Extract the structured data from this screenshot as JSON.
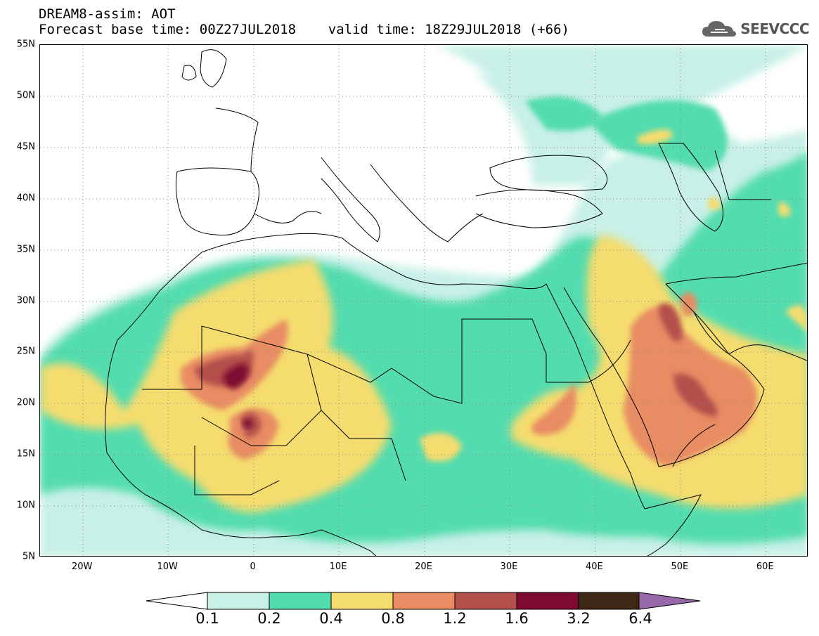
{
  "header": {
    "title": "DREAM8-assim: AOT",
    "subtitle": "Forecast base time: 00Z27JUL2018    valid time: 18Z29JUL2018 (+66)"
  },
  "logo": {
    "text": "SEEVCCC",
    "icon": "cloud-icon"
  },
  "map": {
    "lon_range": [
      -25,
      65
    ],
    "lat_range": [
      5,
      55
    ],
    "lat_labels": [
      "55N",
      "50N",
      "45N",
      "40N",
      "35N",
      "30N",
      "25N",
      "20N",
      "15N",
      "10N",
      "5N"
    ],
    "lon_labels": [
      "20W",
      "10W",
      "0",
      "10E",
      "20E",
      "30E",
      "40E",
      "50E",
      "60E"
    ],
    "grid": "dotted"
  },
  "colorbar": {
    "labels": [
      "0.1",
      "0.2",
      "0.4",
      "0.8",
      "1.2",
      "1.6",
      "3.2",
      "6.4"
    ],
    "colors": [
      "#ffffff",
      "#c8f0e6",
      "#52dcaf",
      "#f5dc6e",
      "#e88c64",
      "#b4504b",
      "#7d0a32",
      "#3c2814",
      "#9669aa"
    ]
  }
}
